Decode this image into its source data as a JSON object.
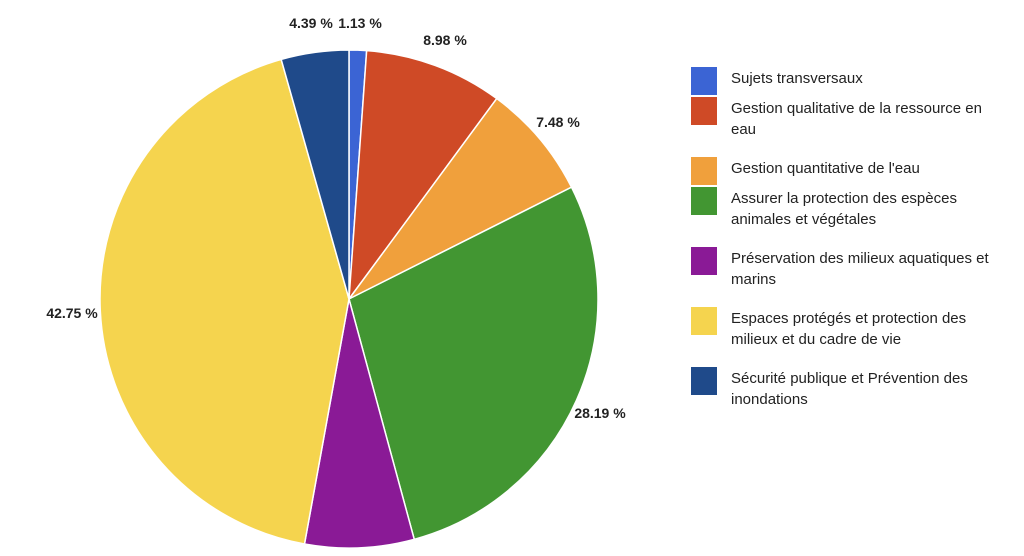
{
  "chart_data": {
    "type": "pie",
    "legend_position": "right",
    "labels": [
      "Sujets transversaux",
      "Gestion qualitative de la ressource en eau",
      "Gestion quantitative de l'eau",
      "Assurer la protection des espèces animales et végétales",
      "Préservation des milieux aquatiques et marins",
      "Espaces protégés et protection des milieux et du cadre de vie",
      "Sécurité publique et Prévention des inondations"
    ],
    "values": [
      1.13,
      8.98,
      7.48,
      28.19,
      7.08,
      42.75,
      4.39
    ],
    "value_labels": [
      "1.13 %",
      "8.98 %",
      "7.48 %",
      "28.19 %",
      "",
      "42.75 %",
      "4.39 %"
    ],
    "colors": [
      "#3b64d4",
      "#cf4a26",
      "#f0a03c",
      "#429632",
      "#8a1a96",
      "#f5d44e",
      "#1f4a8a"
    ]
  }
}
